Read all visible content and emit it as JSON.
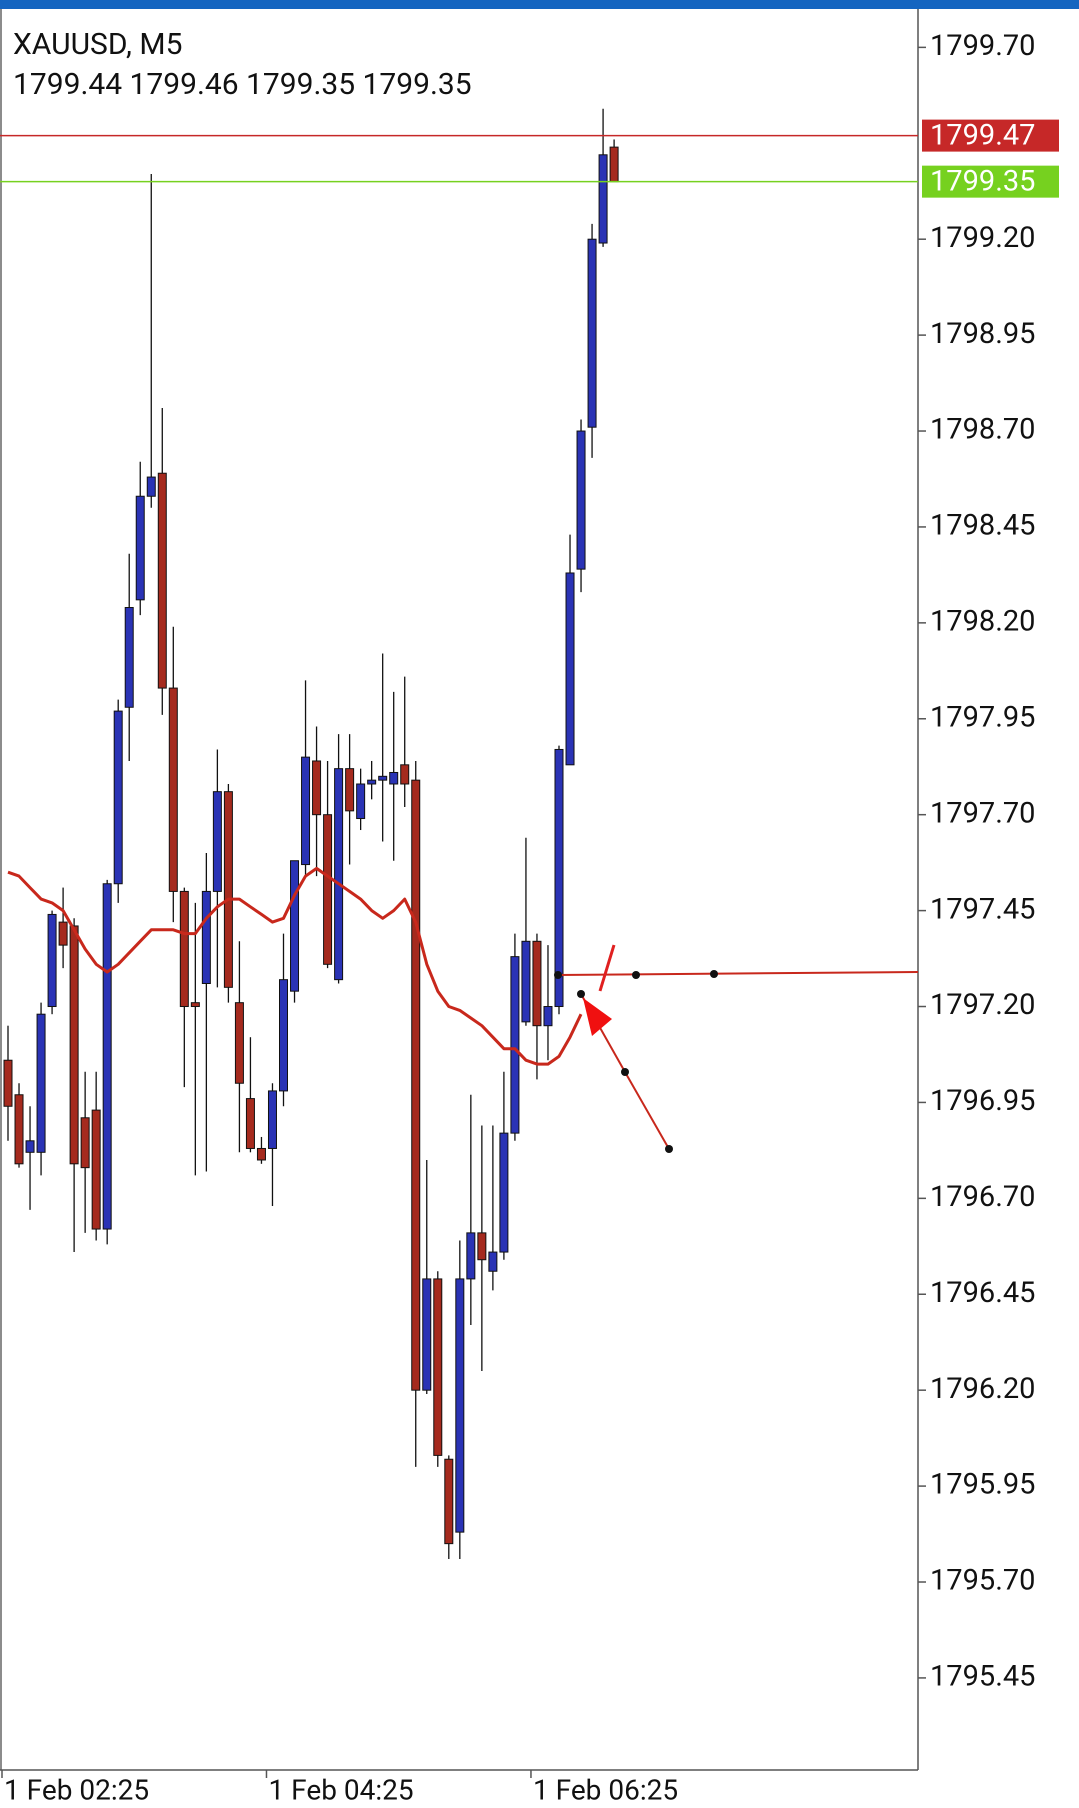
{
  "chart_data": {
    "type": "candlestick",
    "title": "XAUUSD, M5",
    "ohlc_text": "1799.44 1799.46 1799.35 1799.35",
    "categories": [
      "1 Feb 02:25",
      null,
      null,
      null,
      null,
      null,
      null,
      null,
      null,
      null,
      null,
      null,
      null,
      null,
      null,
      null,
      null,
      null,
      null,
      null,
      null,
      null,
      null,
      null,
      "1 Feb 04:25",
      null,
      null,
      null,
      null,
      null,
      null,
      null,
      null,
      null,
      null,
      null,
      null,
      null,
      null,
      null,
      null,
      null,
      null,
      null,
      null,
      null,
      null,
      null,
      "1 Feb 06:25",
      null,
      null,
      null,
      null,
      null,
      null,
      null
    ],
    "open": [
      1797.06,
      1796.97,
      1796.82,
      1796.82,
      1797.2,
      1797.42,
      1797.41,
      1796.91,
      1796.93,
      1796.62,
      1797.52,
      1797.98,
      1798.26,
      1798.53,
      1798.59,
      1798.03,
      1797.5,
      1797.21,
      1797.26,
      1797.5,
      1797.76,
      1797.21,
      1796.96,
      1796.83,
      1796.83,
      1796.98,
      1797.24,
      1797.57,
      1797.84,
      1797.7,
      1797.27,
      1797.82,
      1797.69,
      1797.78,
      1797.79,
      1797.78,
      1797.83,
      1797.79,
      1796.2,
      1796.49,
      1796.02,
      1795.83,
      1796.49,
      1796.61,
      1796.51,
      1796.56,
      1796.87,
      1797.16,
      1797.37,
      1797.15,
      1797.2,
      1797.83,
      1798.34,
      1798.71,
      1799.19,
      1799.44
    ],
    "high": [
      1797.15,
      1797.0,
      1796.94,
      1797.21,
      1797.45,
      1797.51,
      1797.43,
      1797.03,
      1797.03,
      1797.53,
      1798.0,
      1798.38,
      1798.62,
      1799.37,
      1798.76,
      1798.19,
      1797.51,
      1797.47,
      1797.6,
      1797.87,
      1797.78,
      1797.37,
      1797.12,
      1796.86,
      1797.0,
      1797.39,
      1797.58,
      1798.05,
      1797.93,
      1797.84,
      1797.91,
      1797.91,
      1797.82,
      1797.84,
      1798.12,
      1798.02,
      1798.06,
      1797.84,
      1796.8,
      1796.51,
      1796.03,
      1796.59,
      1796.97,
      1796.89,
      1796.89,
      1797.03,
      1797.39,
      1797.64,
      1797.39,
      1797.36,
      1797.88,
      1798.43,
      1798.73,
      1799.24,
      1799.54,
      1799.46
    ],
    "low": [
      1796.85,
      1796.78,
      1796.67,
      1796.76,
      1797.18,
      1797.3,
      1796.56,
      1796.61,
      1796.59,
      1796.58,
      1797.47,
      1797.84,
      1798.22,
      1798.5,
      1797.96,
      1797.42,
      1796.99,
      1796.76,
      1796.77,
      1797.25,
      1797.21,
      1796.82,
      1796.82,
      1796.79,
      1796.68,
      1796.94,
      1797.21,
      1797.54,
      1797.54,
      1797.3,
      1797.26,
      1797.57,
      1797.66,
      1797.74,
      1797.63,
      1797.58,
      1797.72,
      1796.0,
      1796.19,
      1796.0,
      1795.76,
      1795.76,
      1796.37,
      1796.25,
      1796.46,
      1796.54,
      1796.85,
      1797.15,
      1797.01,
      1797.06,
      1797.18,
      1797.83,
      1798.28,
      1798.63,
      1799.18,
      1799.35
    ],
    "close": [
      1796.94,
      1796.79,
      1796.85,
      1797.18,
      1797.44,
      1797.36,
      1796.79,
      1796.78,
      1796.62,
      1797.52,
      1797.97,
      1798.24,
      1798.53,
      1798.58,
      1798.03,
      1797.5,
      1797.2,
      1797.2,
      1797.5,
      1797.76,
      1797.25,
      1797.0,
      1796.83,
      1796.8,
      1796.98,
      1797.27,
      1797.58,
      1797.85,
      1797.7,
      1797.31,
      1797.82,
      1797.71,
      1797.78,
      1797.79,
      1797.8,
      1797.81,
      1797.78,
      1796.2,
      1796.49,
      1796.03,
      1795.8,
      1796.49,
      1796.61,
      1796.54,
      1796.56,
      1796.87,
      1797.33,
      1797.37,
      1797.15,
      1797.2,
      1797.87,
      1798.33,
      1798.7,
      1799.2,
      1799.42,
      1799.35
    ],
    "up_color": "#2a33b5",
    "down_color": "#a52a1e",
    "overlay_line": {
      "color": "#c8281c",
      "values": [
        1797.55,
        1797.54,
        1797.51,
        1797.48,
        1797.47,
        1797.45,
        1797.4,
        1797.35,
        1797.31,
        1797.29,
        1797.31,
        1797.34,
        1797.37,
        1797.4,
        1797.4,
        1797.4,
        1797.39,
        1797.39,
        1797.43,
        1797.46,
        1797.48,
        1797.48,
        1797.46,
        1797.44,
        1797.42,
        1797.43,
        1797.49,
        1797.54,
        1797.56,
        1797.54,
        1797.52,
        1797.5,
        1797.48,
        1797.45,
        1797.43,
        1797.45,
        1797.48,
        1797.42,
        1797.31,
        1797.24,
        1797.2,
        1797.19,
        1797.17,
        1797.15,
        1797.12,
        1797.09,
        1797.09,
        1797.06,
        1797.05,
        1797.05,
        1797.07,
        1797.12,
        1797.18,
        null,
        null,
        null
      ]
    },
    "price_lines": [
      {
        "value": 1799.47,
        "color": "#c62828"
      },
      {
        "value": 1799.35,
        "color": "#76d11f"
      }
    ],
    "ylim": [
      1795.21,
      1799.8
    ],
    "yticks": [
      {
        "value": 1799.7,
        "label": "1799.70"
      },
      {
        "value": 1799.2,
        "label": "1799.20"
      },
      1798.95,
      {
        "value": 1798.7,
        "label": "1798.70"
      },
      1798.45,
      {
        "value": 1798.2,
        "label": "1798.20"
      },
      1797.95,
      {
        "value": 1797.7,
        "label": "1797.70"
      },
      1797.45,
      {
        "value": 1797.2,
        "label": "1797.20"
      },
      1796.95,
      {
        "value": 1796.7,
        "label": "1796.70"
      },
      1796.45,
      {
        "value": 1796.2,
        "label": "1796.20"
      },
      1795.95,
      {
        "value": 1795.7,
        "label": "1795.70"
      },
      1795.45
    ],
    "grid": false
  }
}
